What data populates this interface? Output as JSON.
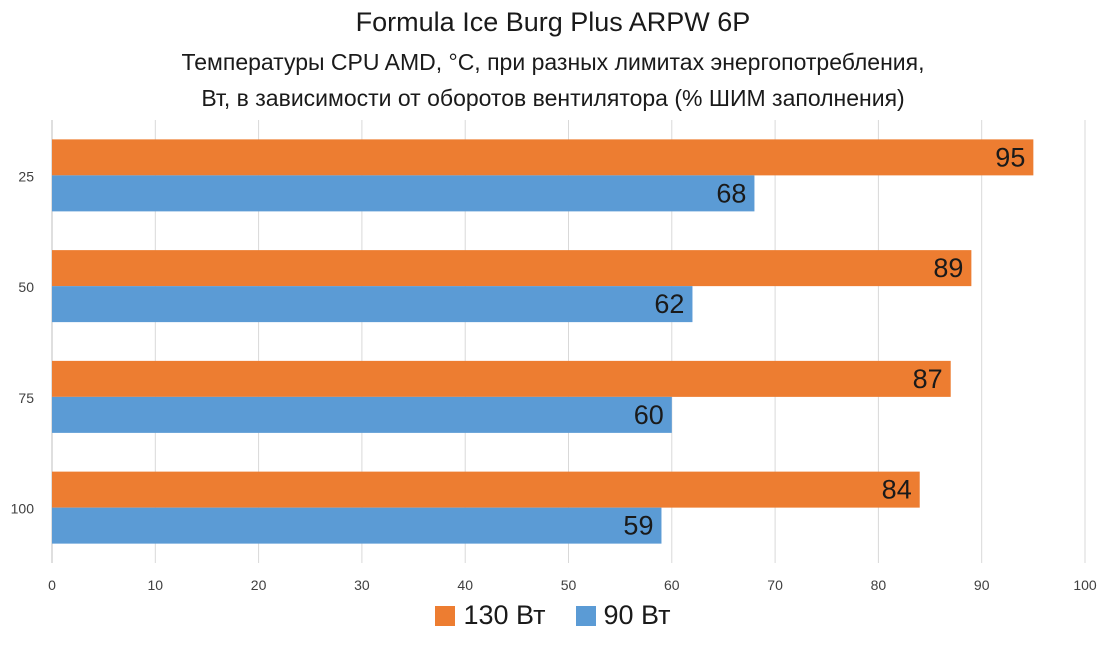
{
  "chart_data": {
    "type": "bar",
    "orientation": "horizontal",
    "title": "Formula Ice Burg Plus ARPW 6P",
    "subtitle_line1": "Температуры CPU AMD, °C, при разных лимитах энергопотребления,",
    "subtitle_line2": "Вт, в зависимости от оборотов вентилятора (% ШИМ заполнения)",
    "categories": [
      "25",
      "50",
      "75",
      "100"
    ],
    "series": [
      {
        "name": "130 Вт",
        "color": "#ED7D31",
        "values": [
          95,
          89,
          87,
          84
        ]
      },
      {
        "name": "90 Вт",
        "color": "#5B9BD5",
        "values": [
          68,
          62,
          60,
          59
        ]
      }
    ],
    "xlim": [
      0,
      100
    ],
    "xticks": [
      0,
      10,
      20,
      30,
      40,
      50,
      60,
      70,
      80,
      90,
      100
    ],
    "grid": true,
    "legend_position": "bottom"
  }
}
